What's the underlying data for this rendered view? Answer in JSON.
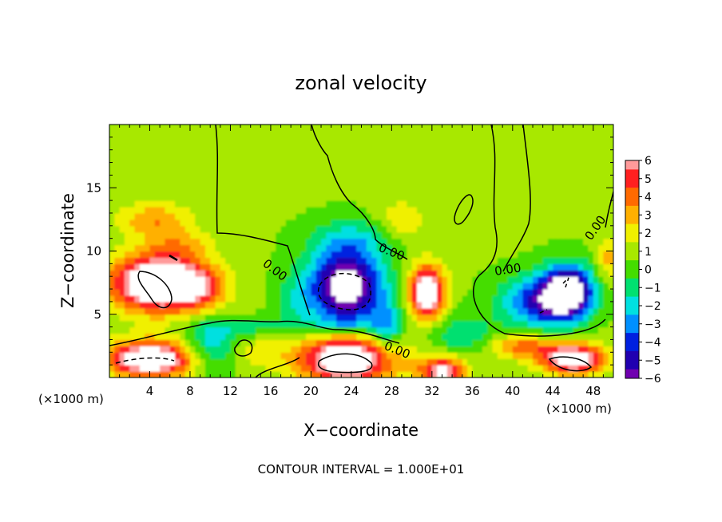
{
  "chart_data": {
    "type": "heatmap",
    "title": "zonal velocity",
    "xlabel": "X−coordinate",
    "ylabel": "Z−coordinate",
    "x_unit_left": "(×1000 m)",
    "x_unit_right": "(×1000 m)",
    "xlim": [
      0,
      50
    ],
    "ylim": [
      0,
      20
    ],
    "x_ticks": [
      4,
      8,
      12,
      16,
      20,
      24,
      28,
      32,
      36,
      40,
      44,
      48
    ],
    "x_tick_labels": [
      "4",
      "8",
      "12",
      "16",
      "20",
      "24",
      "28",
      "32",
      "36",
      "40",
      "44",
      "48"
    ],
    "y_ticks": [
      5,
      10,
      15
    ],
    "y_tick_labels": [
      "5",
      "10",
      "15"
    ],
    "background_value": 0.6,
    "colorbar": {
      "levels": [
        6,
        5,
        4,
        3,
        2,
        1,
        0,
        -1,
        -2,
        -3,
        -4,
        -5,
        -6
      ],
      "labels": [
        "6",
        "5",
        "4",
        "3",
        "2",
        "1",
        "0",
        "−1",
        "−2",
        "−3",
        "−4",
        "−5",
        "−6"
      ],
      "colors": [
        "#ff9a9a",
        "#ff2020",
        "#ff6a00",
        "#ffb000",
        "#f0f000",
        "#a8e800",
        "#44dd00",
        "#00e070",
        "#00e0e0",
        "#0090ff",
        "#0020e0",
        "#2000b0",
        "#7000b0"
      ]
    },
    "features": [
      {
        "x": 5,
        "z": 7.5,
        "rx": 6,
        "rz": 2.8,
        "v": 9
      },
      {
        "x": 4.5,
        "z": 12.5,
        "rx": 4.5,
        "rz": 1.8,
        "v": 2.8
      },
      {
        "x": 7,
        "z": 10.5,
        "rx": 4,
        "rz": 1.5,
        "v": 1.8
      },
      {
        "x": 9,
        "z": 7,
        "rx": 3,
        "rz": 2,
        "v": 2.5
      },
      {
        "x": 4,
        "z": 1.5,
        "rx": 5.5,
        "rz": 1.8,
        "v": 8
      },
      {
        "x": 10,
        "z": 2.5,
        "rx": 3,
        "rz": 2.5,
        "v": -2.8
      },
      {
        "x": 15,
        "z": 2,
        "rx": 3,
        "rz": 1.5,
        "v": 1.5
      },
      {
        "x": 23.5,
        "z": 7.2,
        "rx": 4.5,
        "rz": 3.6,
        "v": -8.5
      },
      {
        "x": 24,
        "z": 11,
        "rx": 5,
        "rz": 2,
        "v": -2
      },
      {
        "x": 18.5,
        "z": 6,
        "rx": 2.5,
        "rz": 3,
        "v": -1.5
      },
      {
        "x": 23.5,
        "z": 1.5,
        "rx": 6,
        "rz": 2.5,
        "v": 8
      },
      {
        "x": 23.5,
        "z": 4.2,
        "rx": 6,
        "rz": 1,
        "v": -1.5
      },
      {
        "x": 13,
        "z": 4,
        "rx": 6,
        "rz": 1,
        "v": -1.5
      },
      {
        "x": 29,
        "z": 12.5,
        "rx": 3,
        "rz": 2,
        "v": 1.8
      },
      {
        "x": 31.5,
        "z": 6.8,
        "rx": 2.2,
        "rz": 2.6,
        "v": 8
      },
      {
        "x": 27.5,
        "z": 4,
        "rx": 2,
        "rz": 2.5,
        "v": -3
      },
      {
        "x": 33,
        "z": 0.5,
        "rx": 3,
        "rz": 1.5,
        "v": 6
      },
      {
        "x": 35,
        "z": 3.5,
        "rx": 4,
        "rz": 2,
        "v": -2
      },
      {
        "x": 42.5,
        "z": 6,
        "rx": 4.5,
        "rz": 2.5,
        "v": -5
      },
      {
        "x": 45.5,
        "z": 6.8,
        "rx": 3,
        "rz": 2.5,
        "v": -9
      },
      {
        "x": 41,
        "z": 2.5,
        "rx": 4,
        "rz": 1.2,
        "v": 3.5
      },
      {
        "x": 46,
        "z": 1.5,
        "rx": 4,
        "rz": 1.5,
        "v": 7.5
      },
      {
        "x": 49.5,
        "z": 9.5,
        "rx": 1.5,
        "rz": 2,
        "v": 2.5
      }
    ],
    "contour_labels": [
      "0.00",
      "0.00",
      "0.00",
      "0.00",
      "0.00"
    ],
    "footer": "CONTOUR INTERVAL = 1.000E+01"
  }
}
